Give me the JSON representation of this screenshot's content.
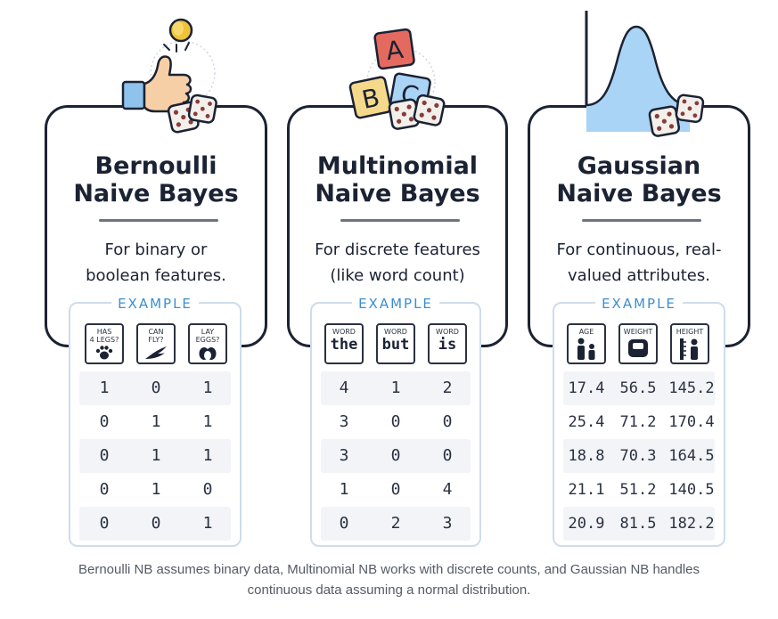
{
  "panels": [
    {
      "title_line1": "Bernoulli",
      "title_line2": "Naive Bayes",
      "desc_line1": "For binary or",
      "desc_line2": "boolean features.",
      "example_label": "EXAMPLE",
      "headers": [
        {
          "text": "HAS\n4 LEGS?",
          "icon": "paw-icon"
        },
        {
          "text": "CAN\nFLY?",
          "icon": "wing-icon"
        },
        {
          "text": "LAY\nEGGS?",
          "icon": "eggs-icon"
        }
      ],
      "rows": [
        [
          "1",
          "0",
          "1"
        ],
        [
          "0",
          "1",
          "1"
        ],
        [
          "0",
          "1",
          "1"
        ],
        [
          "0",
          "1",
          "0"
        ],
        [
          "0",
          "0",
          "1"
        ]
      ]
    },
    {
      "title_line1": "Multinomial",
      "title_line2": "Naive Bayes",
      "desc_line1": "For discrete features",
      "desc_line2": "(like word count)",
      "example_label": "EXAMPLE",
      "headers": [
        {
          "label": "WORD",
          "word": "the"
        },
        {
          "label": "WORD",
          "word": "but"
        },
        {
          "label": "WORD",
          "word": "is"
        }
      ],
      "rows": [
        [
          "4",
          "1",
          "2"
        ],
        [
          "3",
          "0",
          "0"
        ],
        [
          "3",
          "0",
          "0"
        ],
        [
          "1",
          "0",
          "4"
        ],
        [
          "0",
          "2",
          "3"
        ]
      ]
    },
    {
      "title_line1": "Gaussian",
      "title_line2": "Naive Bayes",
      "desc_line1": "For continuous, real-",
      "desc_line2": "valued attributes.",
      "example_label": "EXAMPLE",
      "headers": [
        {
          "text": "AGE",
          "icon": "people-age-icon"
        },
        {
          "text": "WEIGHT",
          "icon": "scale-icon"
        },
        {
          "text": "HEIGHT",
          "icon": "ruler-person-icon"
        }
      ],
      "rows": [
        [
          "17.4",
          "56.5",
          "145.2"
        ],
        [
          "25.4",
          "71.2",
          "170.4"
        ],
        [
          "18.8",
          "70.3",
          "164.5"
        ],
        [
          "21.1",
          "51.2",
          "140.5"
        ],
        [
          "20.9",
          "81.5",
          "182.2"
        ]
      ]
    }
  ],
  "illustrations": {
    "panel0": "thumbs-up-coin-flip-with-dice",
    "panel1": "abc-blocks-with-dice",
    "panel2": "normal-distribution-curve-with-dice",
    "blocks": [
      "A",
      "B",
      "C"
    ]
  },
  "colors": {
    "ink": "#1b2233",
    "accent_blue": "#3b8fd0",
    "light_blue": "#a9d4f5",
    "block_red": "#e46a5f",
    "block_yellow": "#f5d98b",
    "coin_gold": "#f0c23a",
    "skin": "#f7cfa6",
    "cuff_blue": "#8fc2ec"
  },
  "caption_line1": "Bernoulli NB assumes binary data, Multinomial NB works with discrete counts, and Gaussian NB handles",
  "caption_line2": "continuous data assuming a normal distribution."
}
